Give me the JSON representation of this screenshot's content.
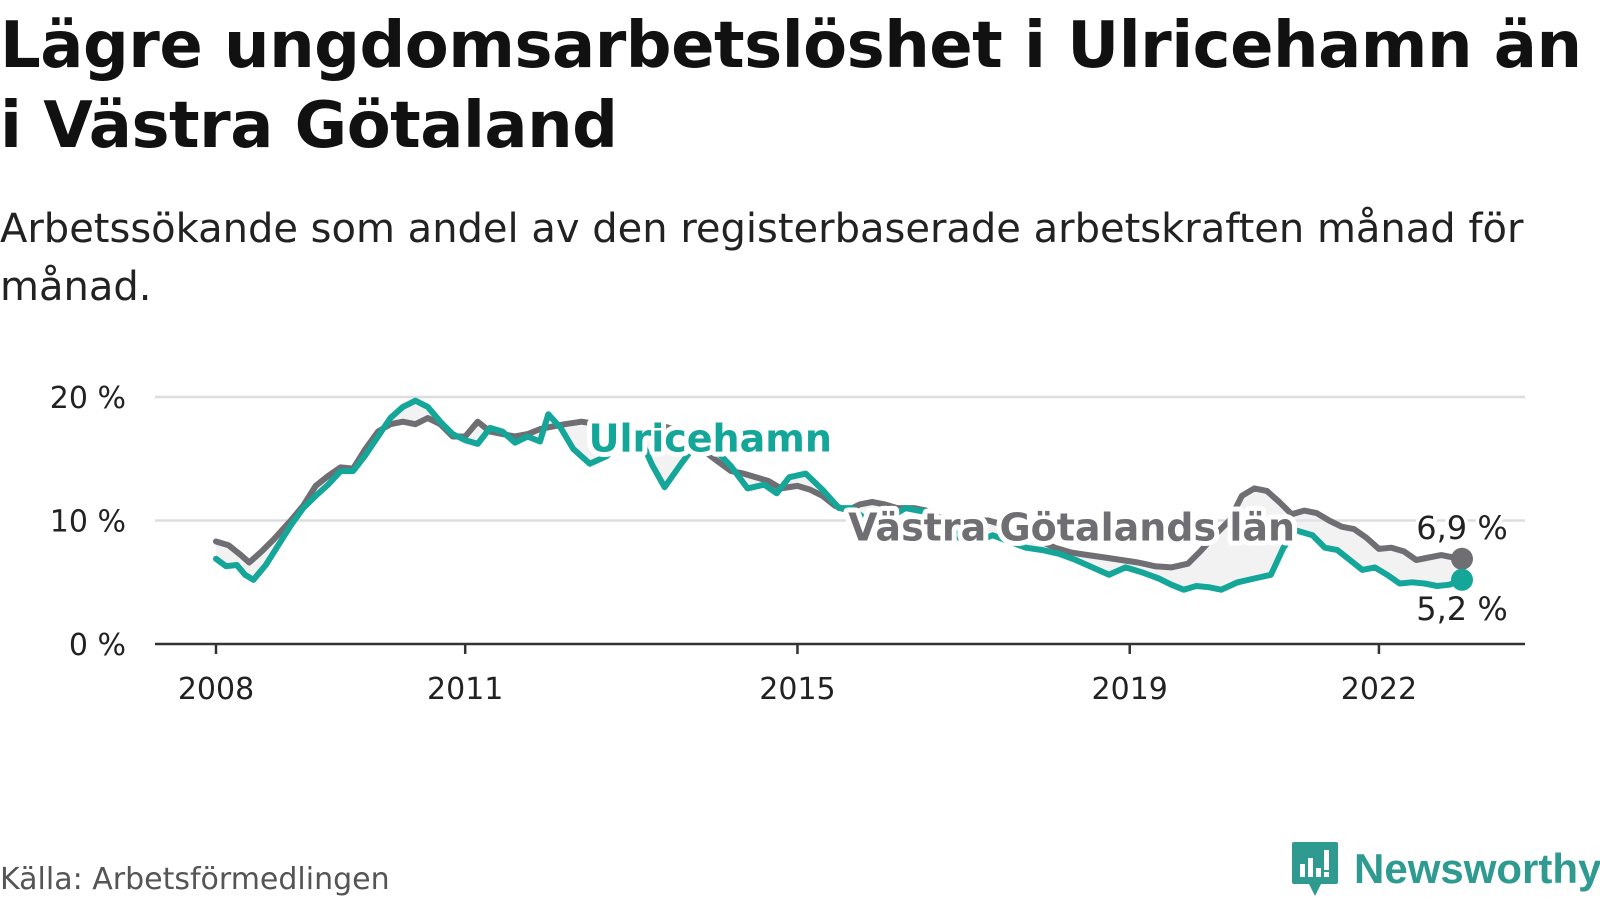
{
  "title": "Lägre ungdomsarbetslöshet i Ulricehamn än i Västra Götaland",
  "subtitle": "Arbetssökande som andel av den registerbaserade arbetskraften månad för månad.",
  "source": "Källa: Arbetsförmedlingen",
  "brand": {
    "name": "Newsworthy",
    "icon": "newsworthy-logo-icon"
  },
  "colors": {
    "ulricehamn": "#14a699",
    "vastra": "#6e6e73",
    "grid": "#dddddd",
    "axis": "#333333",
    "fill": "#e8e8ea"
  },
  "chart_data": {
    "type": "line",
    "x_label_positions": [
      2008,
      2011,
      2015,
      2019,
      2022
    ],
    "x_labels": [
      "2008",
      "2011",
      "2015",
      "2019",
      "2022"
    ],
    "xlim": [
      2008,
      2023
    ],
    "ylim": [
      0,
      20
    ],
    "y_ticks": [
      0,
      10,
      20
    ],
    "y_tick_labels": [
      "0 %",
      "10 %",
      "20 %"
    ],
    "series": [
      {
        "name": "Västra Götalands län",
        "key": "vastra",
        "points": [
          [
            2008.0,
            8.3
          ],
          [
            2008.15,
            8.0
          ],
          [
            2008.3,
            7.2
          ],
          [
            2008.4,
            6.6
          ],
          [
            2008.55,
            7.5
          ],
          [
            2008.7,
            8.5
          ],
          [
            2008.9,
            10.0
          ],
          [
            2009.05,
            11.2
          ],
          [
            2009.2,
            12.8
          ],
          [
            2009.35,
            13.6
          ],
          [
            2009.5,
            14.3
          ],
          [
            2009.65,
            14.2
          ],
          [
            2009.8,
            15.8
          ],
          [
            2009.95,
            17.2
          ],
          [
            2010.1,
            17.8
          ],
          [
            2010.25,
            18.0
          ],
          [
            2010.4,
            17.8
          ],
          [
            2010.55,
            18.3
          ],
          [
            2010.7,
            17.8
          ],
          [
            2010.85,
            16.8
          ],
          [
            2011.0,
            16.8
          ],
          [
            2011.15,
            18.0
          ],
          [
            2011.3,
            17.2
          ],
          [
            2011.45,
            17.0
          ],
          [
            2011.6,
            16.8
          ],
          [
            2011.75,
            17.0
          ],
          [
            2011.9,
            17.4
          ],
          [
            2012.05,
            17.6
          ],
          [
            2012.2,
            17.8
          ],
          [
            2012.4,
            18.0
          ],
          [
            2012.6,
            17.8
          ],
          [
            2012.8,
            17.3
          ],
          [
            2013.0,
            17.4
          ],
          [
            2013.2,
            17.3
          ],
          [
            2013.4,
            17.6
          ],
          [
            2013.6,
            17.2
          ],
          [
            2013.8,
            16.0
          ],
          [
            2014.0,
            15.0
          ],
          [
            2014.2,
            14.0
          ],
          [
            2014.35,
            13.8
          ],
          [
            2014.5,
            13.5
          ],
          [
            2014.65,
            13.2
          ],
          [
            2014.8,
            12.6
          ],
          [
            2015.0,
            12.8
          ],
          [
            2015.15,
            12.5
          ],
          [
            2015.3,
            12.0
          ],
          [
            2015.45,
            11.2
          ],
          [
            2015.6,
            10.8
          ],
          [
            2015.75,
            11.3
          ],
          [
            2015.9,
            11.5
          ],
          [
            2016.05,
            11.3
          ],
          [
            2016.2,
            11.0
          ],
          [
            2016.4,
            11.0
          ],
          [
            2016.55,
            10.8
          ],
          [
            2016.7,
            10.3
          ],
          [
            2016.85,
            10.0
          ],
          [
            2017.0,
            9.8
          ],
          [
            2017.15,
            10.0
          ],
          [
            2017.3,
            10.0
          ],
          [
            2017.5,
            9.6
          ],
          [
            2017.7,
            9.0
          ],
          [
            2017.9,
            8.4
          ],
          [
            2018.1,
            7.8
          ],
          [
            2018.3,
            7.4
          ],
          [
            2018.5,
            7.2
          ],
          [
            2018.7,
            7.0
          ],
          [
            2018.9,
            6.8
          ],
          [
            2019.1,
            6.6
          ],
          [
            2019.3,
            6.3
          ],
          [
            2019.5,
            6.2
          ],
          [
            2019.7,
            6.5
          ],
          [
            2019.85,
            7.5
          ],
          [
            2020.05,
            9.0
          ],
          [
            2020.2,
            10.0
          ],
          [
            2020.35,
            12.0
          ],
          [
            2020.5,
            12.6
          ],
          [
            2020.65,
            12.4
          ],
          [
            2020.8,
            11.5
          ],
          [
            2020.95,
            10.5
          ],
          [
            2021.1,
            10.8
          ],
          [
            2021.25,
            10.6
          ],
          [
            2021.4,
            10.0
          ],
          [
            2021.55,
            9.5
          ],
          [
            2021.7,
            9.3
          ],
          [
            2021.85,
            8.6
          ],
          [
            2022.0,
            7.7
          ],
          [
            2022.15,
            7.8
          ],
          [
            2022.3,
            7.5
          ],
          [
            2022.45,
            6.8
          ],
          [
            2022.6,
            7.0
          ],
          [
            2022.75,
            7.2
          ],
          [
            2022.9,
            7.0
          ],
          [
            2023.0,
            6.9
          ]
        ]
      },
      {
        "name": "Ulricehamn",
        "key": "ulricehamn",
        "points": [
          [
            2008.0,
            6.9
          ],
          [
            2008.12,
            6.3
          ],
          [
            2008.25,
            6.4
          ],
          [
            2008.35,
            5.6
          ],
          [
            2008.45,
            5.2
          ],
          [
            2008.6,
            6.4
          ],
          [
            2008.75,
            8.0
          ],
          [
            2008.9,
            9.6
          ],
          [
            2009.05,
            11.0
          ],
          [
            2009.2,
            12.0
          ],
          [
            2009.35,
            12.9
          ],
          [
            2009.5,
            14.0
          ],
          [
            2009.65,
            14.0
          ],
          [
            2009.8,
            15.3
          ],
          [
            2009.95,
            16.8
          ],
          [
            2010.1,
            18.3
          ],
          [
            2010.25,
            19.2
          ],
          [
            2010.4,
            19.7
          ],
          [
            2010.55,
            19.2
          ],
          [
            2010.7,
            18.0
          ],
          [
            2010.85,
            17.0
          ],
          [
            2011.0,
            16.5
          ],
          [
            2011.15,
            16.2
          ],
          [
            2011.3,
            17.5
          ],
          [
            2011.45,
            17.2
          ],
          [
            2011.6,
            16.3
          ],
          [
            2011.75,
            16.8
          ],
          [
            2011.9,
            16.4
          ],
          [
            2012.0,
            18.6
          ],
          [
            2012.15,
            17.5
          ],
          [
            2012.3,
            15.8
          ],
          [
            2012.5,
            14.6
          ],
          [
            2012.7,
            15.2
          ],
          [
            2012.9,
            16.5
          ],
          [
            2013.1,
            16.8
          ],
          [
            2013.25,
            14.5
          ],
          [
            2013.4,
            12.7
          ],
          [
            2013.6,
            14.6
          ],
          [
            2013.8,
            16.4
          ],
          [
            2014.0,
            15.8
          ],
          [
            2014.2,
            14.4
          ],
          [
            2014.4,
            12.6
          ],
          [
            2014.6,
            12.9
          ],
          [
            2014.75,
            12.2
          ],
          [
            2014.9,
            13.5
          ],
          [
            2015.1,
            13.8
          ],
          [
            2015.3,
            12.5
          ],
          [
            2015.5,
            11.0
          ],
          [
            2015.65,
            11.0
          ],
          [
            2015.8,
            10.2
          ],
          [
            2015.95,
            9.2
          ],
          [
            2016.1,
            10.2
          ],
          [
            2016.3,
            11.0
          ],
          [
            2016.45,
            10.8
          ],
          [
            2016.6,
            10.7
          ],
          [
            2016.8,
            9.8
          ],
          [
            2016.95,
            8.6
          ],
          [
            2017.15,
            8.3
          ],
          [
            2017.35,
            8.8
          ],
          [
            2017.55,
            8.3
          ],
          [
            2017.75,
            7.8
          ],
          [
            2017.95,
            7.6
          ],
          [
            2018.15,
            7.3
          ],
          [
            2018.35,
            6.8
          ],
          [
            2018.55,
            6.2
          ],
          [
            2018.75,
            5.6
          ],
          [
            2018.95,
            6.2
          ],
          [
            2019.15,
            5.8
          ],
          [
            2019.35,
            5.3
          ],
          [
            2019.5,
            4.8
          ],
          [
            2019.65,
            4.4
          ],
          [
            2019.8,
            4.7
          ],
          [
            2019.95,
            4.6
          ],
          [
            2020.1,
            4.4
          ],
          [
            2020.3,
            5.0
          ],
          [
            2020.5,
            5.3
          ],
          [
            2020.7,
            5.6
          ],
          [
            2020.85,
            7.8
          ],
          [
            2021.0,
            9.2
          ],
          [
            2021.2,
            8.8
          ],
          [
            2021.35,
            7.8
          ],
          [
            2021.5,
            7.6
          ],
          [
            2021.65,
            6.8
          ],
          [
            2021.8,
            6.0
          ],
          [
            2021.95,
            6.2
          ],
          [
            2022.1,
            5.6
          ],
          [
            2022.25,
            4.9
          ],
          [
            2022.4,
            5.0
          ],
          [
            2022.55,
            4.9
          ],
          [
            2022.7,
            4.7
          ],
          [
            2022.85,
            4.8
          ],
          [
            2023.0,
            5.2
          ]
        ]
      }
    ],
    "series_labels": [
      {
        "text": "Ulricehamn",
        "series": "ulricehamn",
        "at_x": 2013.95,
        "at_y": 15.6
      },
      {
        "text": "Västra Götalands län",
        "series": "vastra",
        "at_x": 2018.3,
        "at_y": 8.4
      }
    ],
    "end_labels": [
      {
        "text": "6,9 %",
        "series": "vastra",
        "value": 6.9
      },
      {
        "text": "5,2 %",
        "series": "ulricehamn",
        "value": 5.2
      }
    ]
  }
}
